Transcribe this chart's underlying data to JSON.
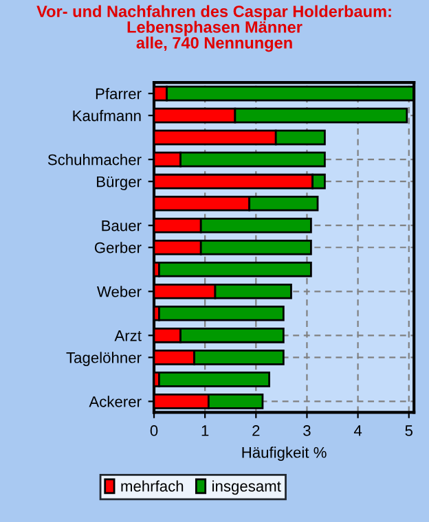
{
  "chart_data": {
    "type": "bar",
    "orientation": "horizontal",
    "stacked": true,
    "title": "Vor- und Nachfahren des Caspar Holderbaum:\nLebensphasen Männer\nalle, 740 Nennungen",
    "xlabel": "Häufigkeit %",
    "categories": [
      "Pfarrer",
      "Kaufmann",
      null,
      "Schuhmacher",
      "Bürger",
      null,
      "Bauer",
      "Gerber",
      null,
      "Weber",
      null,
      "Arzt",
      "Tagelöhner",
      null,
      "Ackerer"
    ],
    "series": [
      {
        "name": "mehrfach",
        "color": "#ff0000",
        "values": [
          0.25,
          1.59,
          2.39,
          0.52,
          3.11,
          1.87,
          0.92,
          0.92,
          0.1,
          1.2,
          0.1,
          0.52,
          0.79,
          0.1,
          1.07
        ]
      },
      {
        "name": "insgesamt",
        "color": "#009900",
        "values": [
          4.84,
          3.37,
          0.96,
          2.83,
          0.24,
          1.34,
          2.16,
          2.16,
          2.98,
          1.49,
          2.44,
          2.02,
          1.75,
          2.16,
          1.06
        ]
      }
    ],
    "xlim": [
      0,
      5.1
    ],
    "xticks": [
      0,
      1,
      2,
      3,
      4,
      5
    ],
    "grid": true,
    "legend": "bottom"
  }
}
